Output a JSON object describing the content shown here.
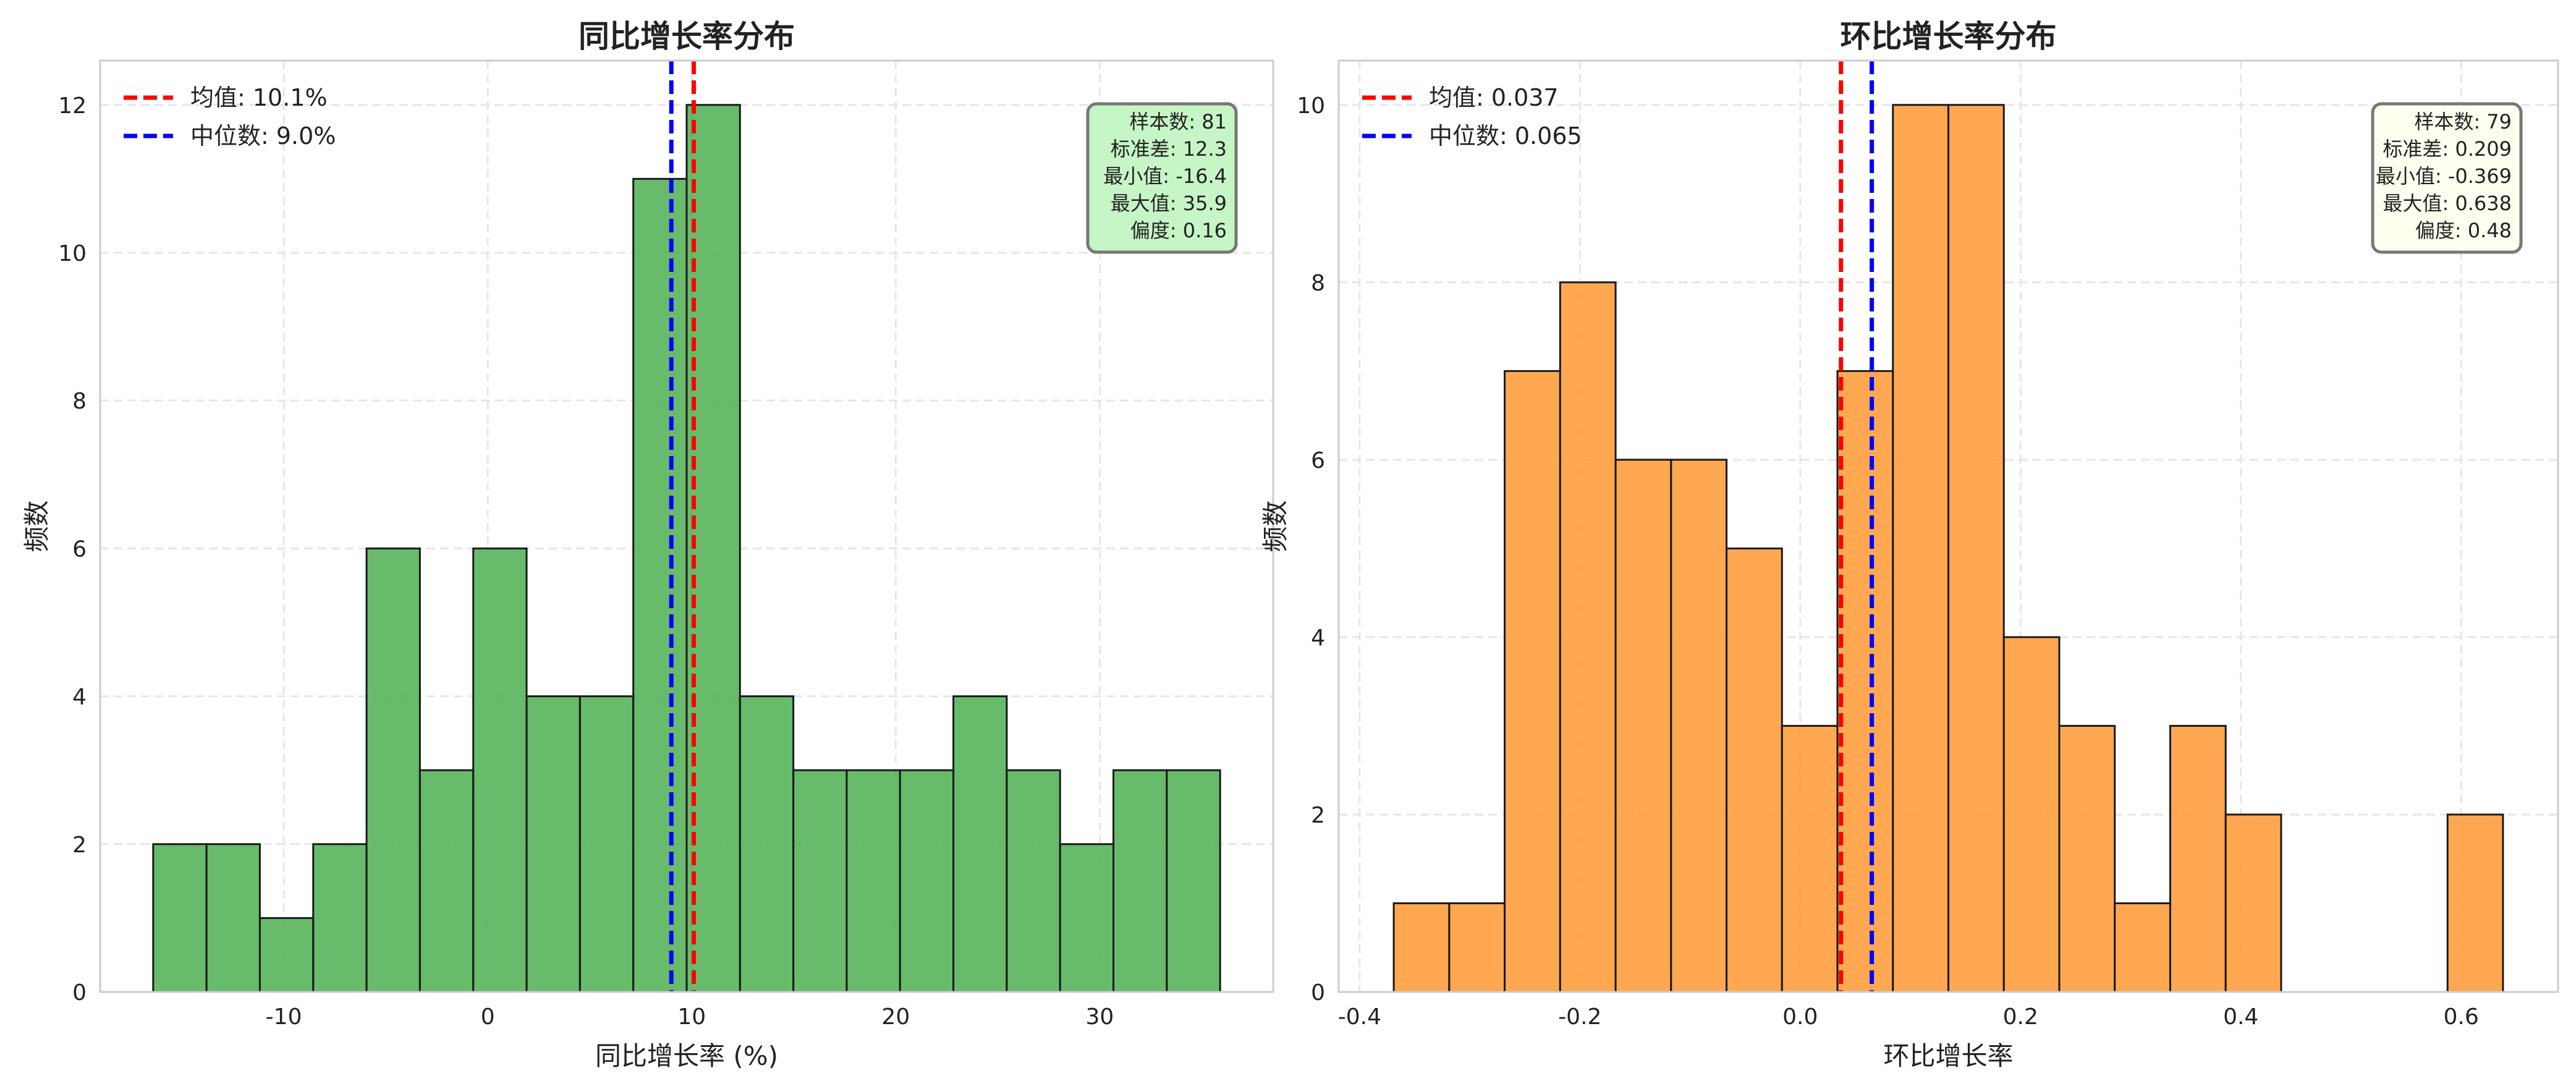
{
  "chart_data": [
    {
      "type": "bar",
      "title": "同比增长率分布",
      "xlabel": "同比增长率 (%)",
      "ylabel": "频数",
      "bin_start": -16.4,
      "bin_end": 35.9,
      "values": [
        2,
        2,
        1,
        2,
        6,
        3,
        6,
        4,
        4,
        11,
        12,
        4,
        3,
        3,
        3,
        4,
        3,
        2,
        3,
        3
      ],
      "xlim": [
        -19.0,
        38.5
      ],
      "ylim": [
        0,
        12.6
      ],
      "xticks": [
        -10,
        0,
        10,
        20,
        30
      ],
      "xtick_labels": [
        "-10",
        "0",
        "10",
        "20",
        "30"
      ],
      "yticks": [
        0,
        2,
        4,
        6,
        8,
        10,
        12
      ],
      "ytick_labels": [
        "0",
        "2",
        "4",
        "6",
        "8",
        "10",
        "12"
      ],
      "bar_color": "#4caf50",
      "grid": true,
      "legend_position": "top-left",
      "mean": 10.1,
      "median": 9.0,
      "legend": [
        "均值: 10.1%",
        "中位数: 9.0%"
      ],
      "stats": [
        "样本数: 81",
        "标准差: 12.3",
        "最小值: -16.4",
        "最大值: 35.9",
        "偏度: 0.16"
      ],
      "stats_bg": "#c6f5c6"
    },
    {
      "type": "bar",
      "title": "环比增长率分布",
      "xlabel": "环比增长率",
      "ylabel": "频数",
      "bin_start": -0.369,
      "bin_end": 0.638,
      "values": [
        1,
        1,
        7,
        8,
        6,
        6,
        5,
        3,
        7,
        10,
        10,
        4,
        3,
        1,
        3,
        2,
        0,
        0,
        0,
        2
      ],
      "xlim": [
        -0.419,
        0.688
      ],
      "ylim": [
        0,
        10.5
      ],
      "xticks": [
        -0.4,
        -0.2,
        0.0,
        0.2,
        0.4,
        0.6
      ],
      "xtick_labels": [
        "-0.4",
        "-0.2",
        "0.0",
        "0.2",
        "0.4",
        "0.6"
      ],
      "yticks": [
        0,
        2,
        4,
        6,
        8,
        10
      ],
      "ytick_labels": [
        "0",
        "2",
        "4",
        "6",
        "8",
        "10"
      ],
      "bar_color": "#ff9933",
      "grid": true,
      "legend_position": "top-left",
      "mean": 0.037,
      "median": 0.065,
      "legend": [
        "均值: 0.037",
        "中位数: 0.065"
      ],
      "stats": [
        "样本数: 79",
        "标准差: 0.209",
        "最小值: -0.369",
        "最大值: 0.638",
        "偏度: 0.48"
      ],
      "stats_bg": "#fffff0"
    }
  ],
  "colors": {
    "mean": "#ff0000",
    "median": "#0000ff"
  }
}
